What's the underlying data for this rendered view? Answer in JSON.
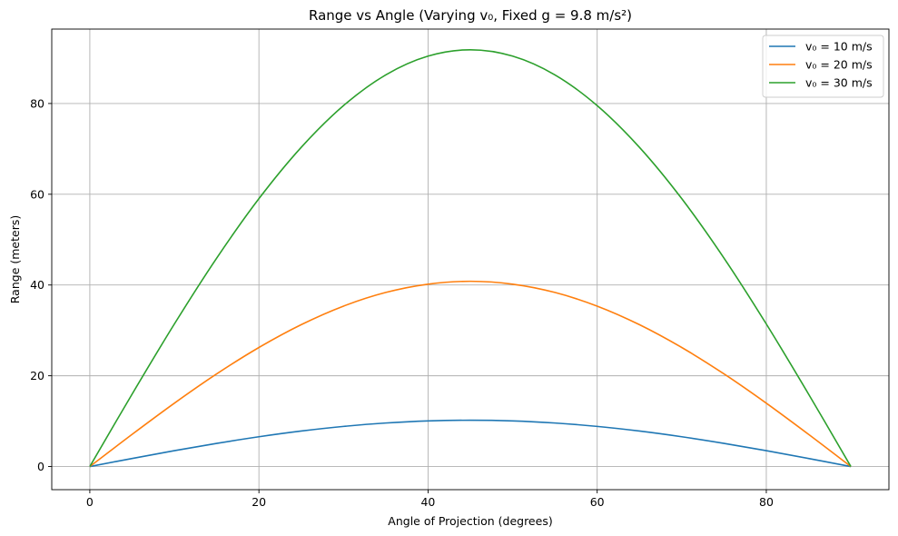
{
  "chart_data": {
    "type": "line",
    "title": "Range vs Angle (Varying v₀, Fixed g = 9.8 m/s²)",
    "xlabel": "Angle of Projection (degrees)",
    "ylabel": "Range (meters)",
    "xlim": [
      -4.5,
      94.5
    ],
    "ylim": [
      -5.1,
      96.4
    ],
    "xticks": [
      0,
      20,
      40,
      60,
      80
    ],
    "yticks": [
      0,
      20,
      40,
      60,
      80
    ],
    "grid": true,
    "legend_position": "top-right",
    "x": [
      0,
      5,
      10,
      15,
      20,
      25,
      30,
      35,
      40,
      45,
      50,
      55,
      60,
      65,
      70,
      75,
      80,
      85,
      90
    ],
    "series": [
      {
        "name": "v₀ = 10 m/s",
        "color": "#1f77b4",
        "values": [
          0,
          1.77,
          3.49,
          5.1,
          6.56,
          7.82,
          8.84,
          9.59,
          10.05,
          10.2,
          10.05,
          9.59,
          8.84,
          7.82,
          6.56,
          5.1,
          3.49,
          1.77,
          0
        ]
      },
      {
        "name": "v₀ = 20 m/s",
        "color": "#ff7f0e",
        "values": [
          0,
          7.09,
          13.96,
          20.41,
          26.23,
          31.26,
          35.35,
          38.36,
          40.19,
          40.82,
          40.19,
          38.36,
          35.35,
          31.26,
          26.23,
          20.41,
          13.96,
          7.09,
          0
        ]
      },
      {
        "name": "v₀ = 30 m/s",
        "color": "#2ca02c",
        "values": [
          0,
          15.95,
          31.41,
          45.92,
          59.03,
          70.34,
          79.53,
          86.31,
          90.44,
          91.84,
          90.44,
          86.31,
          79.53,
          70.34,
          59.03,
          45.92,
          31.41,
          15.95,
          0
        ]
      }
    ]
  }
}
